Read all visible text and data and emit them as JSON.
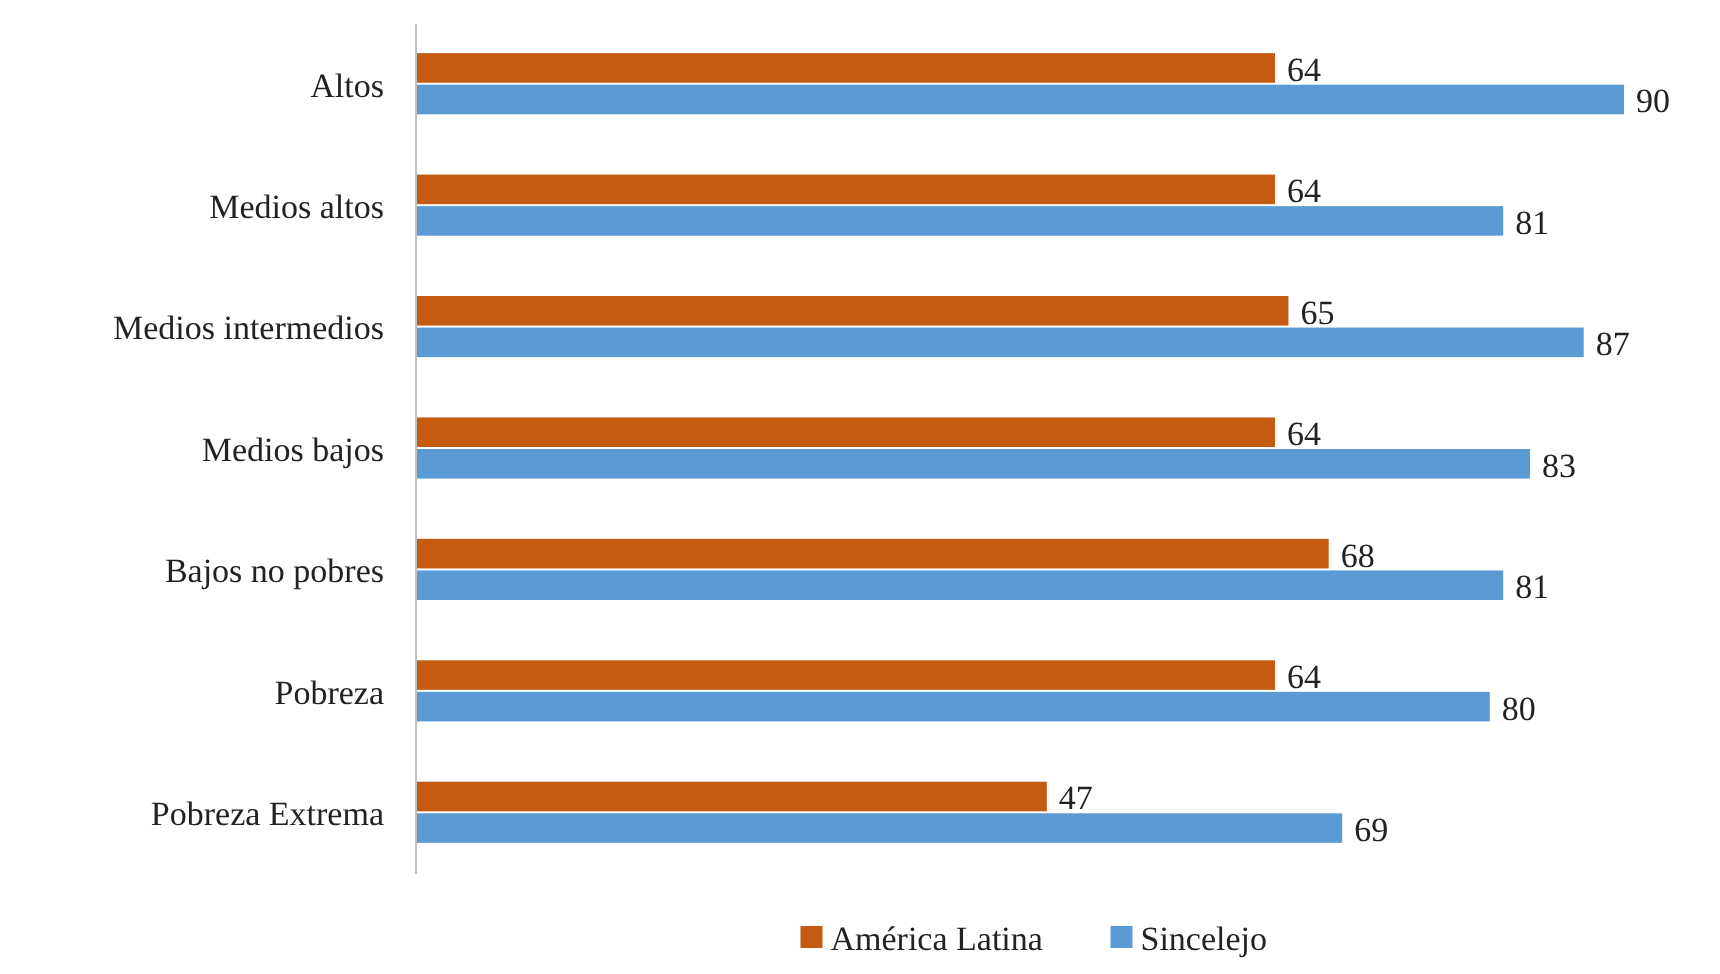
{
  "chart_data": {
    "type": "bar",
    "orientation": "horizontal",
    "categories": [
      "Altos",
      "Medios altos",
      "Medios intermedios",
      "Medios bajos",
      "Bajos no pobres",
      "Pobreza",
      "Pobreza Extrema"
    ],
    "series": [
      {
        "name": "América Latina",
        "color": "#c55a11",
        "values": [
          64,
          64,
          65,
          64,
          68,
          64,
          47
        ]
      },
      {
        "name": "Sincelejo",
        "color": "#5b9bd5",
        "values": [
          90,
          81,
          87,
          83,
          81,
          80,
          69
        ]
      }
    ],
    "data_labels": true,
    "legend": "bottom"
  }
}
